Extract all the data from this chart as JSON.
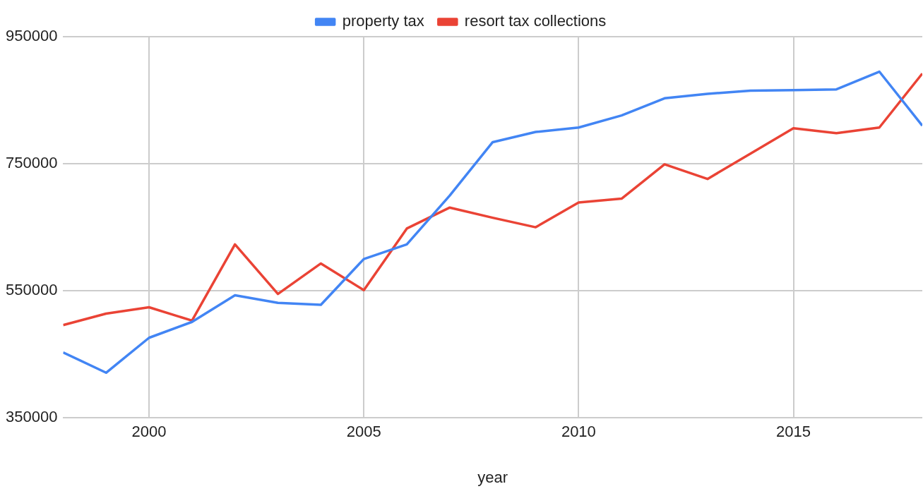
{
  "chart_data": {
    "type": "line",
    "xlabel": "year",
    "x": [
      1998,
      1999,
      2000,
      2001,
      2002,
      2003,
      2004,
      2005,
      2006,
      2007,
      2008,
      2009,
      2010,
      2011,
      2012,
      2013,
      2014,
      2015,
      2016,
      2017,
      2018
    ],
    "series": [
      {
        "name": "property tax",
        "color": "#4285f4",
        "values": [
          453000,
          421000,
          476000,
          501000,
          543000,
          531000,
          528000,
          600000,
          623000,
          700000,
          784000,
          800000,
          807000,
          826000,
          853000,
          860000,
          865000,
          866000,
          867000,
          895000,
          810000
        ]
      },
      {
        "name": "resort tax collections",
        "color": "#ea4335",
        "values": [
          496000,
          514000,
          524000,
          503000,
          623000,
          545000,
          593000,
          551000,
          648000,
          681000,
          665000,
          650000,
          689000,
          695000,
          749000,
          726000,
          766000,
          806000,
          798000,
          807000,
          892000
        ]
      }
    ],
    "xlim": [
      1998,
      2018
    ],
    "xticks": [
      2000,
      2005,
      2010,
      2015
    ],
    "ylim": [
      350000,
      950000
    ],
    "yticks": [
      350000,
      550000,
      750000,
      950000
    ],
    "grid": true,
    "legend": "top",
    "marker": "none",
    "line_style": "solid"
  }
}
